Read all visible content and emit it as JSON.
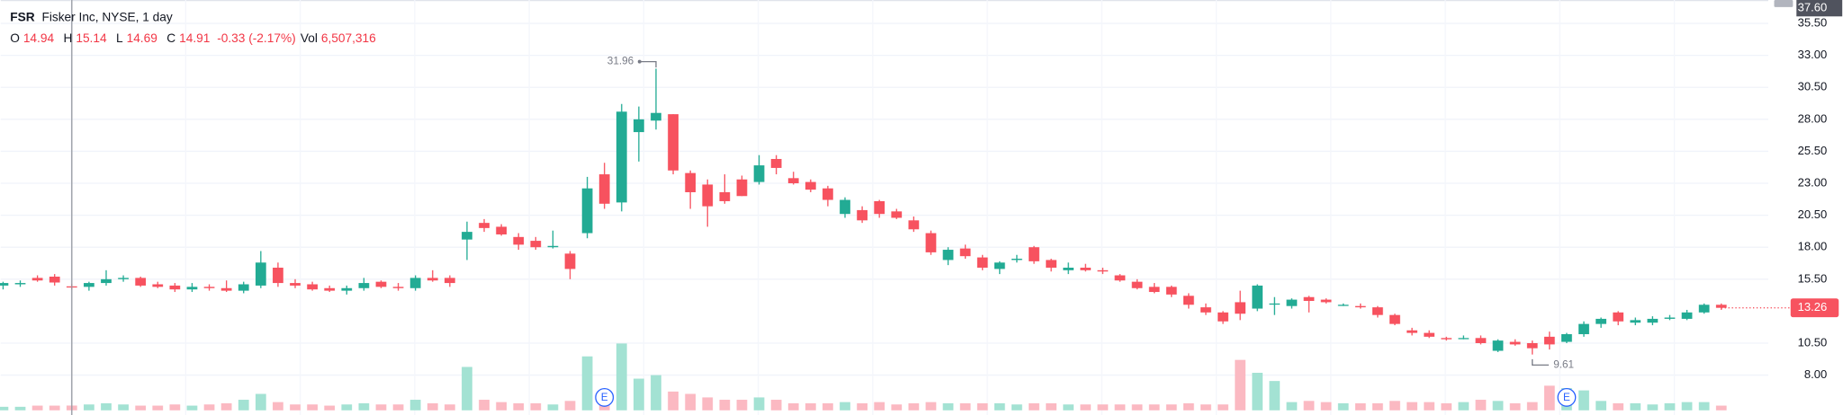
{
  "chart_data": {
    "type": "candlestick",
    "header": {
      "symbol": "FSR",
      "description": "Fisker Inc, NYSE, 1 day",
      "o_label": "O",
      "h_label": "H",
      "l_label": "L",
      "c_label": "C",
      "change": "-0.33 (-2.17%)",
      "vol_label": "Vol",
      "vol_value": "6,507,316"
    },
    "crosshair_candle": 4,
    "crosshair_price": "37.60",
    "open": [
      15.0,
      15.1,
      15.6,
      15.7,
      14.94,
      14.9,
      15.2,
      15.5,
      15.6,
      15.1,
      15.0,
      14.7,
      14.9,
      14.8,
      14.6,
      15.0,
      16.4,
      15.2,
      15.1,
      14.8,
      14.6,
      14.8,
      15.3,
      14.9,
      14.8,
      15.6,
      15.6,
      18.6,
      19.9,
      19.6,
      18.8,
      18.5,
      18.0,
      17.5,
      19.1,
      23.7,
      21.5,
      27.0,
      27.9,
      28.4,
      23.8,
      22.9,
      22.3,
      23.3,
      23.1,
      24.9,
      23.4,
      23.1,
      22.6,
      20.6,
      20.9,
      21.6,
      20.8,
      20.1,
      19.1,
      17.0,
      17.9,
      17.2,
      16.3,
      17.0,
      18.0,
      17.0,
      16.2,
      16.4,
      16.2,
      15.8,
      15.3,
      14.9,
      14.9,
      14.2,
      13.3,
      12.9,
      13.7,
      13.2,
      13.6,
      13.4,
      14.1,
      13.9,
      13.5,
      13.4,
      13.3,
      12.7,
      11.5,
      11.3,
      10.9,
      10.9,
      10.9,
      9.9,
      10.6,
      10.5,
      11.0,
      10.6,
      11.2,
      12.0,
      12.9,
      12.1,
      12.1,
      12.4,
      12.4,
      12.9,
      13.5
    ],
    "high": [
      15.3,
      15.4,
      15.8,
      15.9,
      15.14,
      15.3,
      16.2,
      15.8,
      15.7,
      15.3,
      15.2,
      15.2,
      15.1,
      15.4,
      15.3,
      17.7,
      16.8,
      15.5,
      15.3,
      15.0,
      15.0,
      15.6,
      15.4,
      15.2,
      15.8,
      16.2,
      15.8,
      20.0,
      20.2,
      19.8,
      19.1,
      18.8,
      19.3,
      17.7,
      23.5,
      24.6,
      29.2,
      29.0,
      31.96,
      28.4,
      24.0,
      23.3,
      23.7,
      23.6,
      25.2,
      25.2,
      23.9,
      23.3,
      22.8,
      21.9,
      21.2,
      21.7,
      21.0,
      20.4,
      19.3,
      18.0,
      18.2,
      17.4,
      16.9,
      17.4,
      18.1,
      17.1,
      16.8,
      16.7,
      16.4,
      15.9,
      15.5,
      15.2,
      15.0,
      14.4,
      13.6,
      13.0,
      14.6,
      15.1,
      14.1,
      14.0,
      14.2,
      14.0,
      13.6,
      13.6,
      13.4,
      12.8,
      11.7,
      11.5,
      11.0,
      11.1,
      11.1,
      10.8,
      10.8,
      10.7,
      11.4,
      11.3,
      12.2,
      12.5,
      13.0,
      12.5,
      12.6,
      12.7,
      13.1,
      13.6,
      13.6
    ],
    "low": [
      14.7,
      14.9,
      15.3,
      15.0,
      14.69,
      14.6,
      15.0,
      15.3,
      14.9,
      14.8,
      14.5,
      14.5,
      14.6,
      14.5,
      14.4,
      14.8,
      14.9,
      14.8,
      14.6,
      14.5,
      14.3,
      14.6,
      14.8,
      14.6,
      14.6,
      15.3,
      14.9,
      17.0,
      19.2,
      18.9,
      17.8,
      17.8,
      17.9,
      15.5,
      18.7,
      21.0,
      20.8,
      24.7,
      27.2,
      23.7,
      21.0,
      19.6,
      21.4,
      22.0,
      22.9,
      23.7,
      22.9,
      22.3,
      21.2,
      20.3,
      19.9,
      20.3,
      20.2,
      19.2,
      17.4,
      16.6,
      17.1,
      16.2,
      15.9,
      16.8,
      16.7,
      16.1,
      15.9,
      16.1,
      15.9,
      15.3,
      14.7,
      14.4,
      14.1,
      13.2,
      12.7,
      12.0,
      12.3,
      13.0,
      12.7,
      13.2,
      12.9,
      13.6,
      13.4,
      13.2,
      12.5,
      11.9,
      11.1,
      10.9,
      10.7,
      10.8,
      10.4,
      9.8,
      10.3,
      9.61,
      10.0,
      10.5,
      11.0,
      11.7,
      11.9,
      11.9,
      11.9,
      12.3,
      12.3,
      12.8,
      13.1
    ],
    "close": [
      15.2,
      15.2,
      15.4,
      15.24,
      14.91,
      15.2,
      15.5,
      15.6,
      15.0,
      14.9,
      14.7,
      14.9,
      14.8,
      14.6,
      15.1,
      16.8,
      15.2,
      15.0,
      14.7,
      14.6,
      14.8,
      15.2,
      14.9,
      14.8,
      15.6,
      15.4,
      15.2,
      19.2,
      19.5,
      19.0,
      18.2,
      18.0,
      18.1,
      16.3,
      22.6,
      21.4,
      28.6,
      28.0,
      28.5,
      24.0,
      22.3,
      21.2,
      21.6,
      22.0,
      24.4,
      24.2,
      23.0,
      22.5,
      21.7,
      21.7,
      20.1,
      20.6,
      20.3,
      19.4,
      17.6,
      17.8,
      17.3,
      16.4,
      16.8,
      17.1,
      16.9,
      16.4,
      16.4,
      16.2,
      16.1,
      15.4,
      14.8,
      14.5,
      14.3,
      13.5,
      12.9,
      12.2,
      12.8,
      15.0,
      13.6,
      13.9,
      13.8,
      13.7,
      13.5,
      13.3,
      12.7,
      12.0,
      11.3,
      11.0,
      10.8,
      10.9,
      10.5,
      10.7,
      10.4,
      10.1,
      10.4,
      11.2,
      12.0,
      12.4,
      12.2,
      12.3,
      12.4,
      12.5,
      12.9,
      13.5,
      13.26
    ],
    "volume": [
      4800000,
      4800000,
      6400000,
      6400000,
      6507316,
      8000000,
      9600000,
      8000000,
      6400000,
      6400000,
      8000000,
      6400000,
      8000000,
      9600000,
      14400000,
      22400000,
      11200000,
      8000000,
      8000000,
      6400000,
      8000000,
      9600000,
      8000000,
      8000000,
      14400000,
      9600000,
      8000000,
      59200000,
      14400000,
      11200000,
      9600000,
      9600000,
      8000000,
      12800000,
      73600000,
      25600000,
      91200000,
      43200000,
      48000000,
      25600000,
      22400000,
      17600000,
      14400000,
      14400000,
      17600000,
      14400000,
      9600000,
      9600000,
      9600000,
      11200000,
      9600000,
      11200000,
      8000000,
      9600000,
      11200000,
      9600000,
      9600000,
      9600000,
      9600000,
      8000000,
      9600000,
      9600000,
      8000000,
      8000000,
      8000000,
      8000000,
      8000000,
      8000000,
      8000000,
      9600000,
      8000000,
      8000000,
      68800000,
      51200000,
      40000000,
      11200000,
      12800000,
      11200000,
      9600000,
      9600000,
      9600000,
      12800000,
      11200000,
      11200000,
      9600000,
      11200000,
      14400000,
      12800000,
      9600000,
      11200000,
      33600000,
      30400000,
      27200000,
      12800000,
      9600000,
      9600000,
      8000000,
      9600000,
      11200000,
      11200000,
      6400000
    ],
    "volume_lim": [
      0,
      96000000
    ],
    "events": [
      {
        "label": "E",
        "candle": 35
      },
      {
        "label": "E",
        "candle": 91
      }
    ],
    "ylim": [
      4.88,
      37.33
    ],
    "yticks": [
      {
        "value": 8,
        "label": "8.00"
      },
      {
        "value": 10.5,
        "label": "10.50"
      },
      {
        "value": 15.5,
        "label": "15.50"
      },
      {
        "value": 18,
        "label": "18.00"
      },
      {
        "value": 20.5,
        "label": "20.50"
      },
      {
        "value": 23,
        "label": "23.00"
      },
      {
        "value": 25.5,
        "label": "25.50"
      },
      {
        "value": 28,
        "label": "28.00"
      },
      {
        "value": 30.5,
        "label": "30.50"
      },
      {
        "value": 33,
        "label": "33.00"
      },
      {
        "value": 35.5,
        "label": "35.50"
      }
    ],
    "grid": true,
    "up_color": "#22ab94",
    "down_color": "#f7525f",
    "volume_up_color": "#a3e2d3",
    "volume_down_color": "#fbb9c2"
  }
}
